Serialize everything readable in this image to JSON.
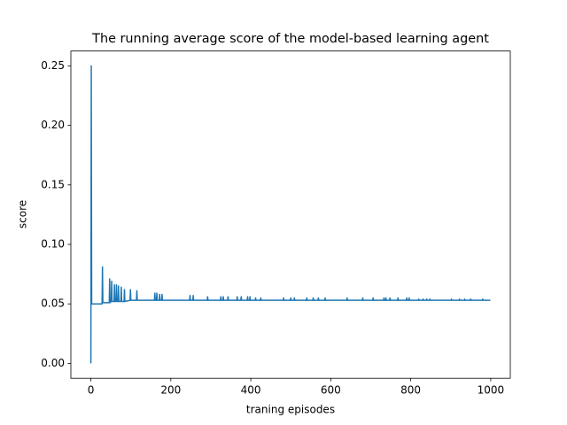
{
  "chart_data": {
    "type": "line",
    "title": "The running average score of the model-based learning agent",
    "xlabel": "traning episodes",
    "ylabel": "score",
    "color": "#1f77b4",
    "grid": false,
    "xlim": [
      -50,
      1049
    ],
    "ylim": [
      -0.0125,
      0.2625
    ],
    "xticks": [
      0,
      200,
      400,
      600,
      800,
      1000
    ],
    "yticks": [
      {
        "value": 0,
        "label": "0.00"
      },
      {
        "value": 0.05,
        "label": "0.05"
      },
      {
        "value": 0.1,
        "label": "0.10"
      },
      {
        "value": 0.15,
        "label": "0.15"
      },
      {
        "value": 0.2,
        "label": "0.20"
      },
      {
        "value": 0.25,
        "label": "0.25"
      }
    ],
    "x": [
      0,
      1,
      2,
      28,
      29,
      30,
      46,
      47,
      48,
      51,
      52,
      53,
      58,
      59,
      60,
      63,
      64,
      65,
      68,
      69,
      70,
      75,
      76,
      77,
      83,
      84,
      85,
      98,
      99,
      100,
      114,
      115,
      116,
      159,
      160,
      161,
      164,
      165,
      166,
      171,
      172,
      173,
      177,
      178,
      179,
      247,
      248,
      249,
      255,
      256,
      257,
      291,
      292,
      293,
      324,
      325,
      326,
      330,
      331,
      332,
      342,
      343,
      344,
      365,
      366,
      367,
      375,
      376,
      377,
      391,
      392,
      393,
      397,
      398,
      399,
      411,
      412,
      413,
      424,
      425,
      426,
      481,
      482,
      483,
      499,
      500,
      501,
      508,
      509,
      510,
      539,
      540,
      541,
      555,
      556,
      557,
      568,
      569,
      570,
      585,
      586,
      587,
      640,
      641,
      642,
      679,
      680,
      681,
      705,
      706,
      707,
      732,
      733,
      734,
      737,
      738,
      739,
      747,
      748,
      749,
      767,
      768,
      769,
      789,
      790,
      791,
      795,
      796,
      797,
      819,
      820,
      821,
      830,
      831,
      832,
      839,
      840,
      841,
      847,
      848,
      849,
      901,
      902,
      903,
      921,
      922,
      923,
      934,
      935,
      936,
      949,
      950,
      951,
      979,
      980,
      981,
      999
    ],
    "values": [
      0,
      0.25,
      0.05,
      0.05,
      0.081,
      0.051,
      0.051,
      0.071,
      0.051,
      0.052,
      0.069,
      0.052,
      0.052,
      0.066,
      0.052,
      0.052,
      0.066,
      0.052,
      0.052,
      0.065,
      0.052,
      0.052,
      0.064,
      0.052,
      0.052,
      0.062,
      0.052,
      0.053,
      0.062,
      0.053,
      0.053,
      0.061,
      0.053,
      0.053,
      0.059,
      0.053,
      0.053,
      0.059,
      0.053,
      0.053,
      0.058,
      0.053,
      0.053,
      0.058,
      0.053,
      0.053,
      0.057,
      0.053,
      0.053,
      0.057,
      0.053,
      0.053,
      0.056,
      0.053,
      0.053,
      0.056,
      0.053,
      0.053,
      0.056,
      0.053,
      0.053,
      0.056,
      0.053,
      0.053,
      0.056,
      0.053,
      0.053,
      0.056,
      0.053,
      0.053,
      0.056,
      0.053,
      0.053,
      0.056,
      0.053,
      0.053,
      0.055,
      0.053,
      0.053,
      0.055,
      0.053,
      0.053,
      0.055,
      0.053,
      0.053,
      0.055,
      0.053,
      0.053,
      0.055,
      0.053,
      0.053,
      0.055,
      0.053,
      0.053,
      0.055,
      0.053,
      0.053,
      0.055,
      0.053,
      0.053,
      0.055,
      0.053,
      0.053,
      0.055,
      0.053,
      0.053,
      0.055,
      0.053,
      0.053,
      0.055,
      0.053,
      0.053,
      0.055,
      0.053,
      0.053,
      0.055,
      0.053,
      0.053,
      0.055,
      0.053,
      0.053,
      0.055,
      0.053,
      0.053,
      0.055,
      0.053,
      0.053,
      0.055,
      0.053,
      0.053,
      0.054,
      0.053,
      0.053,
      0.054,
      0.053,
      0.053,
      0.054,
      0.053,
      0.053,
      0.054,
      0.053,
      0.053,
      0.054,
      0.053,
      0.053,
      0.054,
      0.053,
      0.053,
      0.054,
      0.053,
      0.053,
      0.054,
      0.053,
      0.053,
      0.054,
      0.053,
      0.053
    ]
  }
}
